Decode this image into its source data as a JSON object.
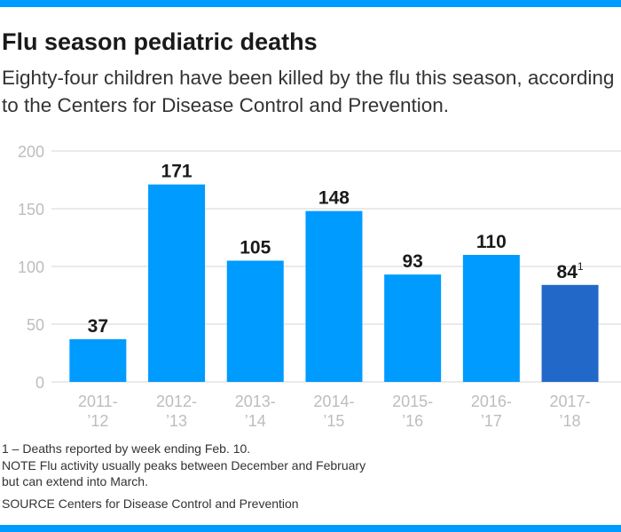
{
  "header": {
    "title": "Flu season pediatric deaths",
    "subtitle": "Eighty-four children have been killed by the flu this season, according to the Centers for Disease Control and Prevention."
  },
  "chart_data": {
    "type": "bar",
    "title": "Flu season pediatric deaths",
    "xlabel": "",
    "ylabel": "",
    "ylim": [
      0,
      200
    ],
    "yticks": [
      0,
      50,
      100,
      150,
      200
    ],
    "categories": [
      [
        "2011-",
        "’12"
      ],
      [
        "2012-",
        "’13"
      ],
      [
        "2013-",
        "’14"
      ],
      [
        "2014-",
        "’15"
      ],
      [
        "2015-",
        "’16"
      ],
      [
        "2016-",
        "’17"
      ],
      [
        "2017-",
        "’18"
      ]
    ],
    "values": [
      37,
      171,
      105,
      148,
      93,
      110,
      84
    ],
    "labels": [
      "37",
      "171",
      "105",
      "148",
      "93",
      "110",
      "84"
    ],
    "label_superscripts": [
      "",
      "",
      "",
      "",
      "",
      "",
      "1"
    ],
    "highlight_index": 6,
    "colors": {
      "bar": "#009bff",
      "highlight": "#2268c9",
      "grid": "#d6d6d6",
      "tick": "#bdbdbd"
    },
    "grid": true,
    "legend": "none"
  },
  "footer": {
    "footnote": "1 – Deaths reported by week ending Feb. 10.",
    "note_line1": "NOTE Flu activity usually peaks between December and February",
    "note_line2": "but can extend into March.",
    "source": "SOURCE  Centers for Disease Control and Prevention"
  }
}
